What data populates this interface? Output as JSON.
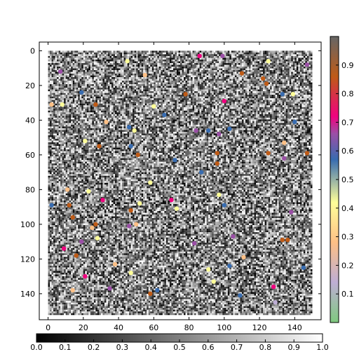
{
  "chart_data": [
    {
      "type": "heatmap",
      "title": "",
      "xlabel": "",
      "ylabel": "",
      "grid_size": [
        150,
        150
      ],
      "colormap": "gray",
      "value_range": [
        0,
        1
      ],
      "description_of_values": "random grayscale field; values uniformly distributed 0–1",
      "x_ticks": [
        "0",
        "20",
        "40",
        "60",
        "80",
        "100",
        "120",
        "140"
      ],
      "y_ticks": [
        "0",
        "20",
        "40",
        "60",
        "80",
        "100",
        "120",
        "140"
      ],
      "xlim": [
        -5,
        155
      ],
      "ylim": [
        155,
        -5
      ],
      "grid": false
    },
    {
      "type": "scatter",
      "colormap": "Accent-like qualitative",
      "value_range": [
        0,
        1
      ],
      "points": [
        {
          "x": 86,
          "y": 3,
          "v": 0.72
        },
        {
          "x": 93,
          "y": 3,
          "v": 0.85
        },
        {
          "x": 99,
          "y": 3,
          "v": 0.55
        },
        {
          "x": 45,
          "y": 6,
          "v": 0.4
        },
        {
          "x": 125,
          "y": 6,
          "v": 0.35
        },
        {
          "x": 147,
          "y": 8,
          "v": 0.6
        },
        {
          "x": 110,
          "y": 13,
          "v": 0.75
        },
        {
          "x": 118,
          "y": 12,
          "v": 0.85
        },
        {
          "x": 122,
          "y": 16,
          "v": 0.8
        },
        {
          "x": 7,
          "y": 12,
          "v": 0.55
        },
        {
          "x": 55,
          "y": 14,
          "v": 0.25
        },
        {
          "x": 83,
          "y": 9,
          "v": 0.9
        },
        {
          "x": 124,
          "y": 19,
          "v": 0.75
        },
        {
          "x": 74,
          "y": 23,
          "v": 0.85
        },
        {
          "x": 78,
          "y": 25,
          "v": 0.8
        },
        {
          "x": 19,
          "y": 24,
          "v": 0.45
        },
        {
          "x": 139,
          "y": 25,
          "v": 0.4
        },
        {
          "x": 133,
          "y": 25,
          "v": 0.5
        },
        {
          "x": 49,
          "y": 28,
          "v": 0.85
        },
        {
          "x": 57,
          "y": 29,
          "v": 0.9
        },
        {
          "x": 100,
          "y": 29,
          "v": 0.7
        },
        {
          "x": 8,
          "y": 31,
          "v": 0.4
        },
        {
          "x": 27,
          "y": 31,
          "v": 0.75
        },
        {
          "x": 2,
          "y": 31,
          "v": 0.25
        },
        {
          "x": 60,
          "y": 32,
          "v": 0.35
        },
        {
          "x": 91,
          "y": 34,
          "v": 0.85
        },
        {
          "x": 66,
          "y": 37,
          "v": 0.45
        },
        {
          "x": 137,
          "y": 38,
          "v": 0.85
        },
        {
          "x": 33,
          "y": 41,
          "v": 0.3
        },
        {
          "x": 140,
          "y": 41,
          "v": 0.45
        },
        {
          "x": 46,
          "y": 44,
          "v": 0.45
        },
        {
          "x": 49,
          "y": 46,
          "v": 0.4
        },
        {
          "x": 84,
          "y": 46,
          "v": 0.6
        },
        {
          "x": 91,
          "y": 46,
          "v": 0.45
        },
        {
          "x": 97,
          "y": 48,
          "v": 0.55
        },
        {
          "x": 103,
          "y": 45,
          "v": 0.5
        },
        {
          "x": 21,
          "y": 52,
          "v": 0.4
        },
        {
          "x": 29,
          "y": 55,
          "v": 0.8
        },
        {
          "x": 22,
          "y": 56,
          "v": 0.85
        },
        {
          "x": 47,
          "y": 55,
          "v": 0.5
        },
        {
          "x": 134,
          "y": 53,
          "v": 0.3
        },
        {
          "x": 51,
          "y": 60,
          "v": 0.75
        },
        {
          "x": 79,
          "y": 59,
          "v": 0.85
        },
        {
          "x": 96,
          "y": 59,
          "v": 0.75
        },
        {
          "x": 125,
          "y": 59,
          "v": 0.75
        },
        {
          "x": 147,
          "y": 59,
          "v": 0.75
        },
        {
          "x": 134,
          "y": 62,
          "v": 0.55
        },
        {
          "x": 72,
          "y": 63,
          "v": 0.45
        },
        {
          "x": 41,
          "y": 65,
          "v": 0.85
        },
        {
          "x": 96,
          "y": 65,
          "v": 0.8
        },
        {
          "x": 87,
          "y": 70,
          "v": 0.5
        },
        {
          "x": 121,
          "y": 70,
          "v": 0.85
        },
        {
          "x": 120,
          "y": 75,
          "v": 0.85
        },
        {
          "x": 58,
          "y": 76,
          "v": 0.4
        },
        {
          "x": 11,
          "y": 80,
          "v": 0.3
        },
        {
          "x": 23,
          "y": 81,
          "v": 0.35
        },
        {
          "x": 94,
          "y": 83,
          "v": 0.85
        },
        {
          "x": 97,
          "y": 83,
          "v": 0.4
        },
        {
          "x": 31,
          "y": 86,
          "v": 0.7
        },
        {
          "x": 70,
          "y": 86,
          "v": 0.7
        },
        {
          "x": 52,
          "y": 88,
          "v": 0.35
        },
        {
          "x": 100,
          "y": 89,
          "v": 0.45
        },
        {
          "x": 2,
          "y": 89,
          "v": 0.5
        },
        {
          "x": 12,
          "y": 89,
          "v": 0.75
        },
        {
          "x": 73,
          "y": 91,
          "v": 0.35
        },
        {
          "x": 47,
          "y": 92,
          "v": 0.75
        },
        {
          "x": 138,
          "y": 93,
          "v": 0.6
        },
        {
          "x": 14,
          "y": 96,
          "v": 0.75
        },
        {
          "x": 41,
          "y": 98,
          "v": 0.85
        },
        {
          "x": 50,
          "y": 100,
          "v": 0.3
        },
        {
          "x": 27,
          "y": 100,
          "v": 0.75
        },
        {
          "x": 46,
          "y": 101,
          "v": 0.6
        },
        {
          "x": 25,
          "y": 102,
          "v": 0.25
        },
        {
          "x": 35,
          "y": 101,
          "v": 0.85
        },
        {
          "x": 105,
          "y": 107,
          "v": 0.6
        },
        {
          "x": 28,
          "y": 108,
          "v": 0.4
        },
        {
          "x": 133,
          "y": 109,
          "v": 0.75
        },
        {
          "x": 136,
          "y": 109,
          "v": 0.8
        },
        {
          "x": 19,
          "y": 110,
          "v": 0.6
        },
        {
          "x": 83,
          "y": 111,
          "v": 0.6
        },
        {
          "x": 9,
          "y": 114,
          "v": 0.7
        },
        {
          "x": 16,
          "y": 118,
          "v": 0.75
        },
        {
          "x": 111,
          "y": 119,
          "v": 0.3
        },
        {
          "x": 38,
          "y": 123,
          "v": 0.3
        },
        {
          "x": 91,
          "y": 126,
          "v": 0.35
        },
        {
          "x": 103,
          "y": 124,
          "v": 0.5
        },
        {
          "x": 145,
          "y": 125,
          "v": 0.45
        },
        {
          "x": 47,
          "y": 128,
          "v": 0.4
        },
        {
          "x": 21,
          "y": 130,
          "v": 0.65
        },
        {
          "x": 94,
          "y": 133,
          "v": 0.4
        },
        {
          "x": 77,
          "y": 134,
          "v": 0.85
        },
        {
          "x": 55,
          "y": 136,
          "v": 0.85
        },
        {
          "x": 128,
          "y": 136,
          "v": 0.65
        },
        {
          "x": 35,
          "y": 137,
          "v": 0.55
        },
        {
          "x": 62,
          "y": 138,
          "v": 0.45
        },
        {
          "x": 58,
          "y": 140,
          "v": 0.75
        },
        {
          "x": 129,
          "y": 145,
          "v": 0.2
        },
        {
          "x": 14,
          "y": 138,
          "v": 0.25
        },
        {
          "x": 109,
          "y": 141,
          "v": 0.5
        }
      ]
    }
  ],
  "colorbar_right": {
    "ticks": [
      "0.1",
      "0.2",
      "0.3",
      "0.4",
      "0.5",
      "0.6",
      "0.7",
      "0.8",
      "0.9"
    ],
    "colors": [
      "#7fc97f",
      "#beaed4",
      "#fdc086",
      "#ffff99",
      "#386cb0",
      "#9b4fa6",
      "#f0027f",
      "#bf5b17",
      "#666666"
    ]
  },
  "colorbar_bottom": {
    "ticks": [
      "0.0",
      "0.1",
      "0.2",
      "0.3",
      "0.4",
      "0.5",
      "0.6",
      "0.7",
      "0.8",
      "0.9",
      "1.0"
    ]
  }
}
